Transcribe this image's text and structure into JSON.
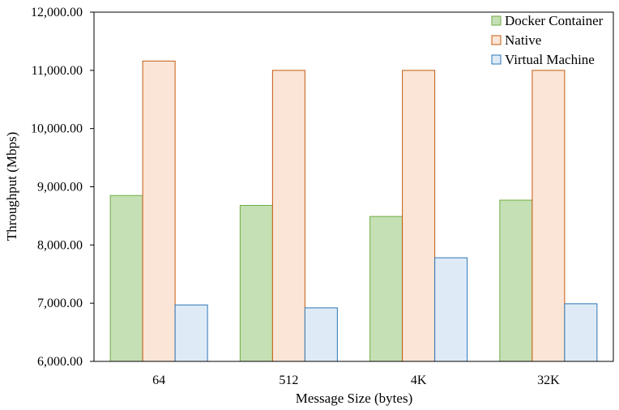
{
  "chart_data": {
    "type": "bar",
    "xlabel": "Message Size (bytes)",
    "ylabel": "Throughput (Mbps)",
    "categories": [
      "64",
      "512",
      "4K",
      "32K"
    ],
    "ylim": [
      6000,
      12000
    ],
    "yticks": [
      6000,
      7000,
      8000,
      9000,
      10000,
      11000,
      12000
    ],
    "ytick_labels": [
      "6,000.00",
      "7,000.00",
      "8,000.00",
      "9,000.00",
      "10,000.00",
      "11,000.00",
      "12,000.00"
    ],
    "grid": false,
    "legend_position": "top-right",
    "series": [
      {
        "name": "Docker Container",
        "color": "#c5e0b4",
        "stroke": "#70ad47",
        "values": [
          8850,
          8680,
          8490,
          8770
        ]
      },
      {
        "name": "Native",
        "color": "#fbe5d6",
        "stroke": "#c55a11",
        "values": [
          11160,
          11000,
          11000,
          11000
        ]
      },
      {
        "name": "Virtual Machine",
        "color": "#deebf7",
        "stroke": "#2e75b6",
        "values": [
          6970,
          6920,
          7780,
          6990
        ]
      }
    ]
  }
}
